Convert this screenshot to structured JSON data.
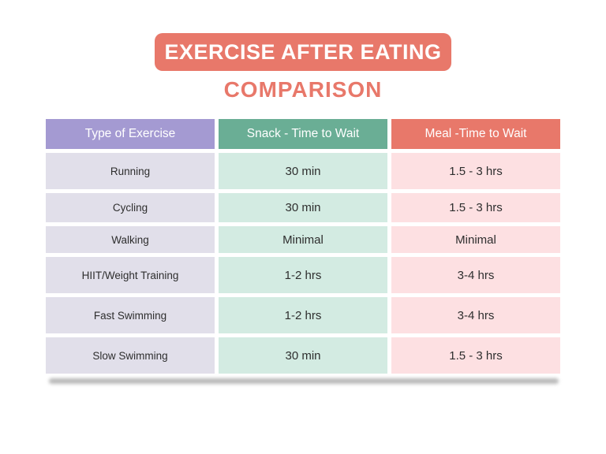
{
  "header": {
    "title": "EXERCISE AFTER EATING",
    "subtitle": "COMPARISON"
  },
  "table": {
    "columns": [
      "Type of Exercise",
      "Snack - Time to Wait",
      "Meal -Time to Wait"
    ],
    "rows": [
      [
        "Running",
        "30 min",
        "1.5 - 3 hrs"
      ],
      [
        "Cycling",
        "30 min",
        "1.5 - 3 hrs"
      ],
      [
        "Walking",
        "Minimal",
        "Minimal"
      ],
      [
        "HIIT/Weight Training",
        "1-2 hrs",
        "3-4 hrs"
      ],
      [
        "Fast Swimming",
        "1-2 hrs",
        "3-4 hrs"
      ],
      [
        "Slow Swimming",
        "30 min",
        "1.5 - 3 hrs"
      ]
    ]
  },
  "colors": {
    "accent": "#e8786a",
    "exercise_header": "#a49ad2",
    "snack_header": "#6aae95",
    "meal_header": "#e8786a",
    "exercise_cell": "#e1dfea",
    "snack_cell": "#d3ebe2",
    "meal_cell": "#fde0e2"
  }
}
